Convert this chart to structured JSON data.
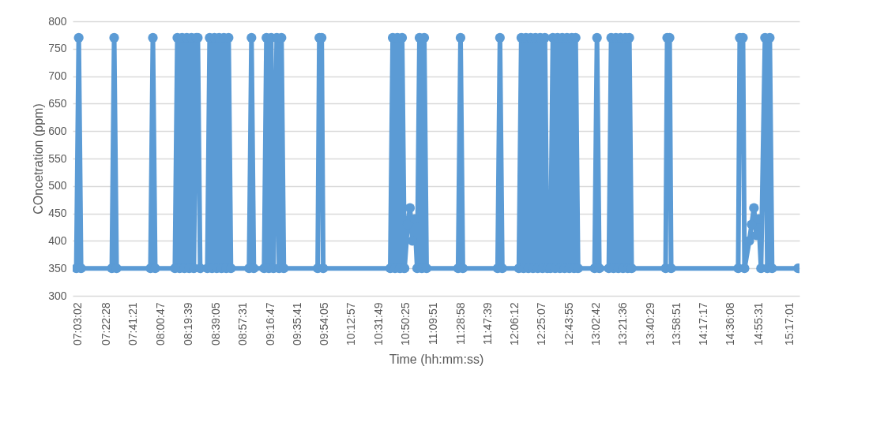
{
  "chart_data": {
    "type": "line",
    "xlabel": "Time (hh:mm:ss)",
    "ylabel": "COncetration (ppm)",
    "x": [
      7.032,
      7.06,
      7.087,
      7.443,
      7.47,
      7.498,
      7.89,
      7.918,
      7.945,
      8.173,
      8.201,
      8.228,
      8.256,
      8.283,
      8.31,
      8.338,
      8.365,
      8.392,
      8.42,
      8.438,
      8.465,
      8.548,
      8.575,
      8.602,
      8.63,
      8.657,
      8.684,
      8.712,
      8.739,
      8.767,
      8.794,
      8.821,
      9.031,
      9.059,
      9.086,
      9.205,
      9.232,
      9.26,
      9.287,
      9.314,
      9.351,
      9.378,
      9.406,
      9.433,
      9.825,
      9.844,
      9.871,
      9.889,
      10.665,
      10.693,
      10.72,
      10.747,
      10.775,
      10.802,
      10.83,
      10.866,
      10.893,
      10.921,
      10.948,
      10.976,
      11.003,
      11.03,
      11.058,
      11.085,
      11.45,
      11.478,
      11.505,
      11.907,
      11.934,
      11.961,
      12.153,
      12.181,
      12.208,
      12.235,
      12.263,
      12.29,
      12.317,
      12.345,
      12.372,
      12.4,
      12.427,
      12.454,
      12.482,
      12.518,
      12.546,
      12.573,
      12.6,
      12.628,
      12.655,
      12.682,
      12.71,
      12.737,
      12.765,
      12.792,
      12.81,
      12.838,
      13.029,
      13.057,
      13.084,
      13.194,
      13.221,
      13.249,
      13.276,
      13.304,
      13.331,
      13.358,
      13.386,
      13.413,
      13.431,
      13.458,
      13.851,
      13.869,
      13.897,
      13.915,
      14.691,
      14.709,
      14.746,
      14.764,
      14.819,
      14.846,
      14.873,
      14.901,
      14.928,
      14.955,
      15.001,
      15.028,
      15.056,
      15.083,
      15.384
    ],
    "series": [
      {
        "color": "#5b9bd5",
        "values": [
          350,
          770,
          350,
          350,
          770,
          350,
          350,
          770,
          350,
          350,
          770,
          350,
          770,
          350,
          770,
          350,
          770,
          350,
          770,
          770,
          350,
          350,
          770,
          350,
          770,
          350,
          770,
          350,
          770,
          350,
          770,
          350,
          350,
          770,
          350,
          350,
          770,
          350,
          770,
          350,
          770,
          350,
          770,
          350,
          350,
          770,
          770,
          350,
          350,
          770,
          350,
          770,
          350,
          770,
          350,
          430,
          460,
          400,
          440,
          350,
          770,
          350,
          770,
          350,
          350,
          770,
          350,
          350,
          770,
          350,
          350,
          770,
          350,
          770,
          350,
          770,
          350,
          770,
          350,
          770,
          350,
          770,
          350,
          350,
          770,
          350,
          770,
          350,
          770,
          350,
          770,
          350,
          770,
          350,
          770,
          350,
          350,
          770,
          350,
          350,
          770,
          350,
          770,
          350,
          770,
          350,
          770,
          350,
          770,
          350,
          350,
          770,
          770,
          350,
          350,
          770,
          770,
          350,
          400,
          430,
          460,
          410,
          440,
          350,
          770,
          350,
          770,
          350,
          350
        ]
      }
    ],
    "xlim": [
      6.99,
      15.4
    ],
    "xticks": [
      {
        "value": 7.0506,
        "label": "07:03:02"
      },
      {
        "value": 7.3744,
        "label": "07:22:28"
      },
      {
        "value": 7.6892,
        "label": "07:41:21"
      },
      {
        "value": 8.0131,
        "label": "08:00:47"
      },
      {
        "value": 8.3275,
        "label": "08:19:39"
      },
      {
        "value": 8.6514,
        "label": "08:39:05"
      },
      {
        "value": 8.9586,
        "label": "08:57:31"
      },
      {
        "value": 9.2797,
        "label": "09:16:47"
      },
      {
        "value": 9.5947,
        "label": "09:35:41"
      },
      {
        "value": 9.9014,
        "label": "09:54:05"
      },
      {
        "value": 10.2158,
        "label": "10:12:57"
      },
      {
        "value": 10.5303,
        "label": "10:31:49"
      },
      {
        "value": 10.8403,
        "label": "10:50:25"
      },
      {
        "value": 11.1642,
        "label": "11:09:51"
      },
      {
        "value": 11.4828,
        "label": "11:28:58"
      },
      {
        "value": 11.7942,
        "label": "11:47:39"
      },
      {
        "value": 12.1033,
        "label": "12:06:12"
      },
      {
        "value": 12.4186,
        "label": "12:25:07"
      },
      {
        "value": 12.7319,
        "label": "12:43:55"
      },
      {
        "value": 13.045,
        "label": "13:02:42"
      },
      {
        "value": 13.36,
        "label": "13:21:36"
      },
      {
        "value": 13.6747,
        "label": "13:40:29"
      },
      {
        "value": 13.9808,
        "label": "13:58:51"
      },
      {
        "value": 14.2881,
        "label": "14:17:17"
      },
      {
        "value": 14.6022,
        "label": "14:36:08"
      },
      {
        "value": 14.9253,
        "label": "14:55:31"
      },
      {
        "value": 15.2836,
        "label": "15:17:01"
      }
    ],
    "ylim": [
      300,
      800
    ],
    "yticks": [
      300,
      350,
      400,
      450,
      500,
      550,
      600,
      650,
      700,
      750,
      800
    ],
    "grid": "y",
    "marker": "circle",
    "line_style": "solid"
  }
}
